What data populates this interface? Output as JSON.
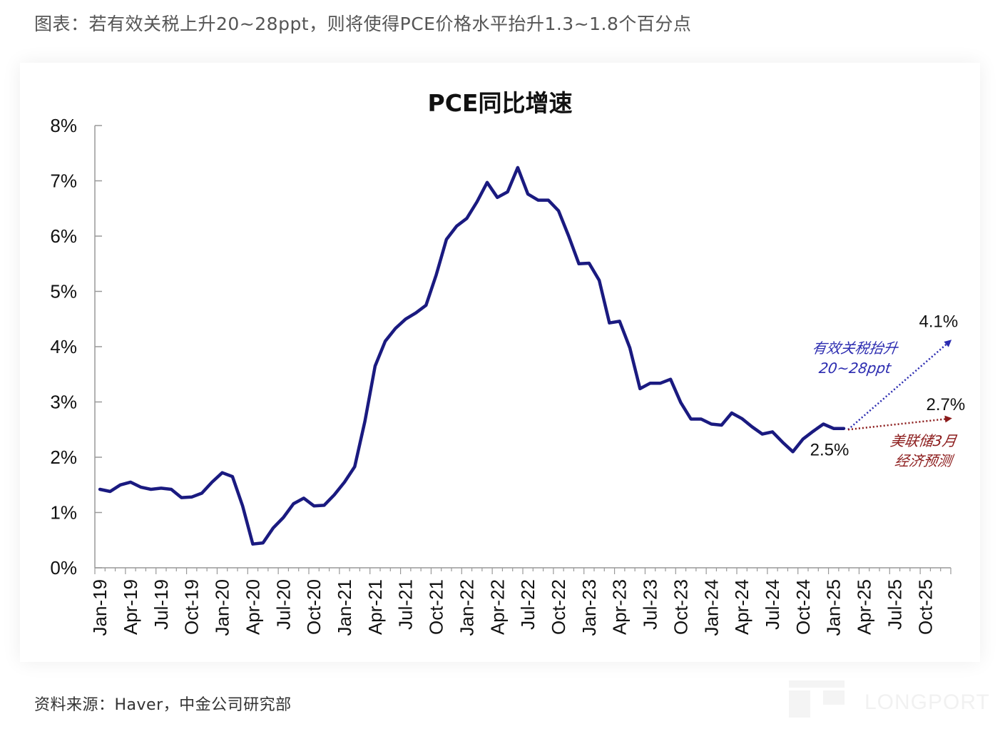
{
  "heading": "图表：若有效关税上升20~28ppt，则将使得PCE价格水平抬升1.3~1.8个百分点",
  "source": "资料来源：Haver，中金公司研究部",
  "watermark": "LONGPORT",
  "colors": {
    "series": "#1a1a80",
    "tariff_arrow": "#2b2bb0",
    "fed_arrow": "#8b1a1a",
    "axis": "#999999"
  },
  "chart_data": {
    "type": "line",
    "title": "PCE同比增速",
    "y_unit": "%",
    "ylim": [
      0,
      8
    ],
    "yticks": [
      0,
      1,
      2,
      3,
      4,
      5,
      6,
      7,
      8
    ],
    "ytick_labels": [
      "0%",
      "1%",
      "2%",
      "3%",
      "4%",
      "5%",
      "6%",
      "7%",
      "8%"
    ],
    "xlim": [
      "2019-01",
      "2025-12"
    ],
    "xtick_labels": [
      "Jan-19",
      "Apr-19",
      "Jul-19",
      "Oct-19",
      "Jan-20",
      "Apr-20",
      "Jul-20",
      "Oct-20",
      "Jan-21",
      "Apr-21",
      "Jul-21",
      "Oct-21",
      "Jan-22",
      "Apr-22",
      "Jul-22",
      "Oct-22",
      "Jan-23",
      "Apr-23",
      "Jul-23",
      "Oct-23",
      "Jan-24",
      "Apr-24",
      "Jul-24",
      "Oct-24",
      "Jan-25",
      "Apr-25",
      "Jul-25",
      "Oct-25"
    ],
    "series": [
      {
        "name": "",
        "start": "2019-01",
        "values": [
          1.42,
          1.38,
          1.5,
          1.55,
          1.46,
          1.42,
          1.44,
          1.42,
          1.27,
          1.28,
          1.35,
          1.55,
          1.72,
          1.65,
          1.12,
          0.43,
          0.45,
          0.72,
          0.91,
          1.16,
          1.26,
          1.12,
          1.13,
          1.32,
          1.55,
          1.83,
          2.65,
          3.65,
          4.1,
          4.33,
          4.5,
          4.61,
          4.75,
          5.3,
          5.94,
          6.18,
          6.32,
          6.62,
          6.97,
          6.7,
          6.8,
          7.24,
          6.76,
          6.65,
          6.65,
          6.46,
          6.0,
          5.5,
          5.51,
          5.2,
          4.43,
          4.46,
          3.98,
          3.24,
          3.34,
          3.34,
          3.41,
          2.99,
          2.69,
          2.69,
          2.6,
          2.58,
          2.8,
          2.7,
          2.55,
          2.42,
          2.46,
          2.27,
          2.1,
          2.33,
          2.47,
          2.6,
          2.52,
          2.52
        ]
      }
    ],
    "annotations": [
      {
        "text": "4.1%",
        "x": "2025-12",
        "y": 4.1,
        "style": "value"
      },
      {
        "text": "2.7%",
        "x": "2025-12",
        "y": 2.7,
        "style": "value"
      },
      {
        "text": "2.5%",
        "x": "2025-02",
        "y": 2.5,
        "style": "value"
      },
      {
        "text_lines": [
          "有效关税抬升",
          "20~28ppt"
        ],
        "x": "2025-01",
        "y": 4.1,
        "style": "tariff"
      },
      {
        "text_lines": [
          "美联储3月",
          "经济预测"
        ],
        "x": "2025-10",
        "y": 2.0,
        "style": "fed"
      }
    ],
    "projections": [
      {
        "name": "tariff",
        "from": {
          "x": "2025-02",
          "y": 2.5
        },
        "to": {
          "x": "2025-12",
          "y": 4.1
        },
        "style": "dotted-arrow"
      },
      {
        "name": "fed",
        "from": {
          "x": "2025-02",
          "y": 2.5
        },
        "to": {
          "x": "2025-12",
          "y": 2.7
        },
        "style": "dotted-arrow"
      }
    ],
    "grid": false,
    "legend": "none"
  }
}
